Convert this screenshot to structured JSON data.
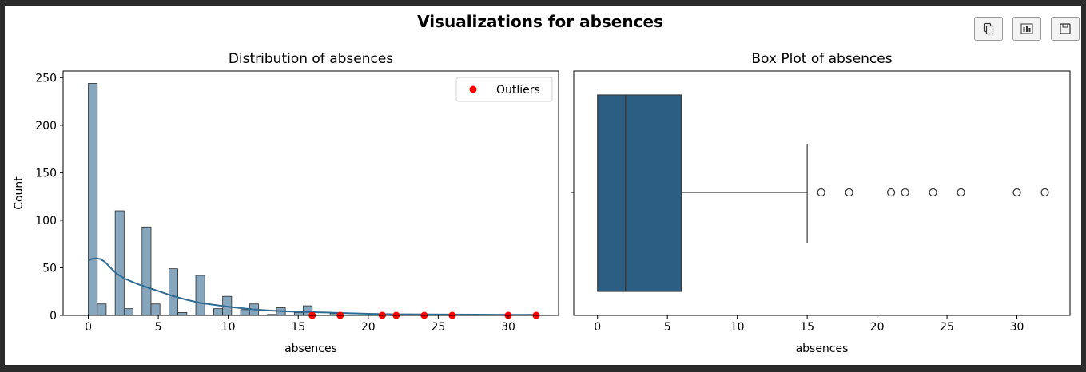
{
  "figure_title": "Visualizations for absences",
  "toolbar": {
    "copy_icon": "copy-icon",
    "chart_icon": "bar-chart-icon",
    "save_icon": "save-icon"
  },
  "colors": {
    "hist_fill": "#86a6be",
    "kde_line": "#2e6b94",
    "box_fill": "#2c5d82",
    "outlier": "#ff0000"
  },
  "chart_data": [
    {
      "type": "bar",
      "title": "Distribution of absences",
      "xlabel": "absences",
      "ylabel": "Count",
      "xlim": [
        -1.8,
        33.6
      ],
      "ylim": [
        0,
        257
      ],
      "xticks": [
        0,
        5,
        10,
        15,
        20,
        25,
        30
      ],
      "yticks": [
        0,
        50,
        100,
        150,
        200,
        250
      ],
      "bin_width": 0.64,
      "bins": [
        {
          "x0": 0,
          "count": 244
        },
        {
          "x0": 0.64,
          "count": 12
        },
        {
          "x0": 1.92,
          "count": 110
        },
        {
          "x0": 2.56,
          "count": 7
        },
        {
          "x0": 3.84,
          "count": 93
        },
        {
          "x0": 4.48,
          "count": 12
        },
        {
          "x0": 5.76,
          "count": 49
        },
        {
          "x0": 6.4,
          "count": 3
        },
        {
          "x0": 7.68,
          "count": 42
        },
        {
          "x0": 8.96,
          "count": 7
        },
        {
          "x0": 9.6,
          "count": 20
        },
        {
          "x0": 10.88,
          "count": 6
        },
        {
          "x0": 11.52,
          "count": 12
        },
        {
          "x0": 12.8,
          "count": 1
        },
        {
          "x0": 13.44,
          "count": 8
        },
        {
          "x0": 14.72,
          "count": 3
        },
        {
          "x0": 15.36,
          "count": 10
        },
        {
          "x0": 17.28,
          "count": 2
        },
        {
          "x0": 20.48,
          "count": 1
        },
        {
          "x0": 21.76,
          "count": 1
        },
        {
          "x0": 23.68,
          "count": 1
        },
        {
          "x0": 25.6,
          "count": 1
        },
        {
          "x0": 29.44,
          "count": 1
        },
        {
          "x0": 31.36,
          "count": 1
        }
      ],
      "kde": {
        "x": [
          0,
          0.3,
          0.6,
          0.9,
          1.2,
          1.6,
          2,
          2.5,
          3,
          3.5,
          4,
          4.5,
          5,
          5.5,
          6,
          7,
          8,
          9,
          10,
          11,
          12,
          13,
          14,
          15,
          16,
          17,
          18,
          20,
          22,
          24,
          26,
          28,
          30,
          32
        ],
        "y": [
          58,
          59.5,
          60,
          59,
          56,
          50,
          44,
          39.5,
          36,
          33,
          30.5,
          28,
          25.5,
          23,
          20.5,
          16.5,
          13,
          11,
          9,
          7.5,
          6,
          5,
          4.3,
          3.8,
          3.4,
          3,
          2.5,
          1.7,
          1.2,
          1,
          0.9,
          0.8,
          0.7,
          0.6
        ]
      },
      "outliers": {
        "label": "Outliers",
        "x": [
          16,
          18,
          21,
          22,
          24,
          26,
          30,
          32
        ],
        "y": [
          0,
          0,
          0,
          0,
          0,
          0,
          0,
          0
        ]
      },
      "legend_position": "top-right"
    },
    {
      "type": "box",
      "title": "Box Plot of absences",
      "xlabel": "absences",
      "xlim": [
        -1.7,
        33.8
      ],
      "xticks": [
        0,
        5,
        10,
        15,
        20,
        25,
        30
      ],
      "min": 0,
      "q1": 0,
      "median": 2,
      "q3": 6,
      "whisker_high": 15,
      "fliers": [
        16,
        18,
        21,
        22,
        24,
        26,
        30,
        32
      ]
    }
  ]
}
